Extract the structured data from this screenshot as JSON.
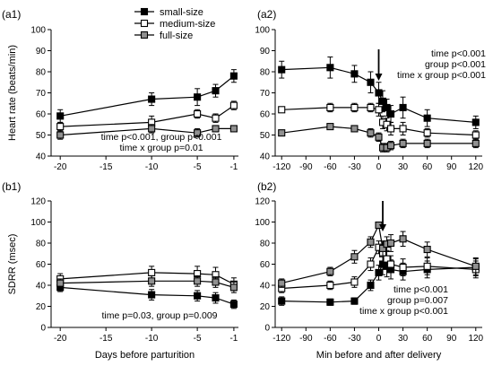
{
  "legend": {
    "entries": [
      {
        "series": "small",
        "label": "small-size"
      },
      {
        "series": "medium",
        "label": "medium-size"
      },
      {
        "series": "full",
        "label": "full-size"
      }
    ],
    "placement": "top-center"
  },
  "series_style": {
    "small": {
      "fill": "#000000",
      "stroke": "#000000"
    },
    "medium": {
      "fill": "#ffffff",
      "stroke": "#000000"
    },
    "full": {
      "fill": "#909090",
      "stroke": "#000000"
    }
  },
  "chart_data": [
    {
      "id": "a1",
      "type": "line",
      "panel_label": "(a1)",
      "ylabel": "Heart rate (beats/min)",
      "xlabel": "",
      "xlim": [
        -21,
        -0.5
      ],
      "ylim": [
        40,
        100
      ],
      "xticks": [
        -20,
        -15,
        -10,
        -5,
        -1
      ],
      "yticks": [
        40,
        50,
        60,
        70,
        80,
        90,
        100
      ],
      "annotations": [
        "time p<0.001, group p<0.001",
        "time x group p=0.01"
      ],
      "arrow_x": null,
      "series": [
        {
          "key": "small",
          "x": [
            -20,
            -10,
            -5,
            -3,
            -1
          ],
          "y": [
            59,
            67,
            68,
            71,
            78
          ],
          "err": [
            3,
            3,
            4,
            3,
            3
          ]
        },
        {
          "key": "medium",
          "x": [
            -20,
            -10,
            -5,
            -3,
            -1
          ],
          "y": [
            54,
            56,
            60,
            58,
            64
          ],
          "err": [
            2,
            3,
            2,
            2,
            2
          ]
        },
        {
          "key": "full",
          "x": [
            -20,
            -10,
            -5,
            -3,
            -1
          ],
          "y": [
            50,
            53,
            51,
            53,
            53
          ],
          "err": [
            2,
            2,
            2,
            1,
            1
          ]
        }
      ]
    },
    {
      "id": "a2",
      "type": "line",
      "panel_label": "(a2)",
      "ylabel": "",
      "xlabel": "",
      "xlim": [
        -128,
        128
      ],
      "ylim": [
        40,
        100
      ],
      "xticks": [
        -120,
        -90,
        -60,
        -30,
        0,
        30,
        60,
        90,
        120
      ],
      "yticks": [
        40,
        50,
        60,
        70,
        80,
        90,
        100
      ],
      "annotations": [
        "time p<0.001",
        "group p<0.001",
        "time x group p<0.001"
      ],
      "arrow_x": 0,
      "series": [
        {
          "key": "small",
          "x": [
            -120,
            -60,
            -30,
            -10,
            0,
            5,
            10,
            15,
            30,
            60,
            120
          ],
          "y": [
            81,
            82,
            79,
            75,
            70,
            66,
            63,
            60,
            63,
            58,
            56
          ],
          "err": [
            4,
            5,
            4,
            5,
            5,
            5,
            4,
            4,
            5,
            4,
            3
          ]
        },
        {
          "key": "medium",
          "x": [
            -120,
            -60,
            -30,
            -10,
            0,
            5,
            10,
            15,
            30,
            60,
            120
          ],
          "y": [
            62,
            63,
            63,
            63,
            62,
            56,
            55,
            53,
            53,
            51,
            50
          ],
          "err": [
            1,
            2,
            2,
            2,
            3,
            3,
            3,
            3,
            3,
            2,
            2
          ]
        },
        {
          "key": "full",
          "x": [
            -120,
            -60,
            -30,
            -10,
            0,
            5,
            10,
            15,
            30,
            60,
            120
          ],
          "y": [
            51,
            54,
            53,
            51,
            49,
            44,
            44,
            45,
            46,
            46,
            46
          ],
          "err": [
            1,
            1,
            1,
            2,
            2,
            2,
            2,
            2,
            2,
            2,
            2
          ]
        }
      ]
    },
    {
      "id": "b1",
      "type": "line",
      "panel_label": "(b1)",
      "ylabel": "SDRR (msec)",
      "xlabel": "Days before parturition",
      "xlim": [
        -21,
        -0.5
      ],
      "ylim": [
        0,
        120
      ],
      "xticks": [
        -20,
        -15,
        -10,
        -5,
        -1
      ],
      "yticks": [
        0,
        20,
        40,
        60,
        80,
        100,
        120
      ],
      "annotations": [
        "time p=0.03, group p=0.009"
      ],
      "arrow_x": null,
      "series": [
        {
          "key": "small",
          "x": [
            -20,
            -10,
            -5,
            -3,
            -1
          ],
          "y": [
            38,
            31,
            30,
            28,
            22
          ],
          "err": [
            4,
            5,
            5,
            5,
            4
          ]
        },
        {
          "key": "medium",
          "x": [
            -20,
            -10,
            -5,
            -3,
            -1
          ],
          "y": [
            46,
            52,
            51,
            50,
            41
          ],
          "err": [
            5,
            6,
            7,
            7,
            6
          ]
        },
        {
          "key": "full",
          "x": [
            -20,
            -10,
            -5,
            -3,
            -1
          ],
          "y": [
            42,
            44,
            44,
            43,
            38
          ],
          "err": [
            4,
            5,
            5,
            5,
            5
          ]
        }
      ]
    },
    {
      "id": "b2",
      "type": "line",
      "panel_label": "(b2)",
      "ylabel": "",
      "xlabel": "Min before and after delivery",
      "xlim": [
        -128,
        128
      ],
      "ylim": [
        0,
        120
      ],
      "xticks": [
        -120,
        -90,
        -60,
        -30,
        0,
        30,
        60,
        90,
        120
      ],
      "yticks": [
        0,
        20,
        40,
        60,
        80,
        100,
        120
      ],
      "annotations": [
        "time p<0.001",
        "group p=0.007",
        "time x group p<0.001"
      ],
      "arrow_x": 5,
      "series": [
        {
          "key": "small",
          "x": [
            -120,
            -60,
            -30,
            -10,
            0,
            5,
            10,
            15,
            30,
            60,
            120
          ],
          "y": [
            25,
            24,
            25,
            40,
            52,
            60,
            58,
            55,
            53,
            55,
            57
          ],
          "err": [
            4,
            3,
            3,
            5,
            7,
            10,
            10,
            9,
            8,
            8,
            8
          ]
        },
        {
          "key": "medium",
          "x": [
            -120,
            -60,
            -30,
            -10,
            0,
            5,
            10,
            15,
            30,
            60,
            120
          ],
          "y": [
            37,
            40,
            43,
            60,
            76,
            70,
            65,
            60,
            57,
            58,
            55
          ],
          "err": [
            4,
            4,
            5,
            6,
            6,
            7,
            8,
            8,
            8,
            8,
            8
          ]
        },
        {
          "key": "full",
          "x": [
            -120,
            -60,
            -30,
            -10,
            0,
            5,
            10,
            15,
            30,
            60,
            120
          ],
          "y": [
            42,
            53,
            67,
            81,
            97,
            75,
            79,
            80,
            84,
            74,
            58
          ],
          "err": [
            4,
            4,
            6,
            5,
            3,
            7,
            7,
            8,
            7,
            7,
            8
          ]
        }
      ]
    }
  ]
}
